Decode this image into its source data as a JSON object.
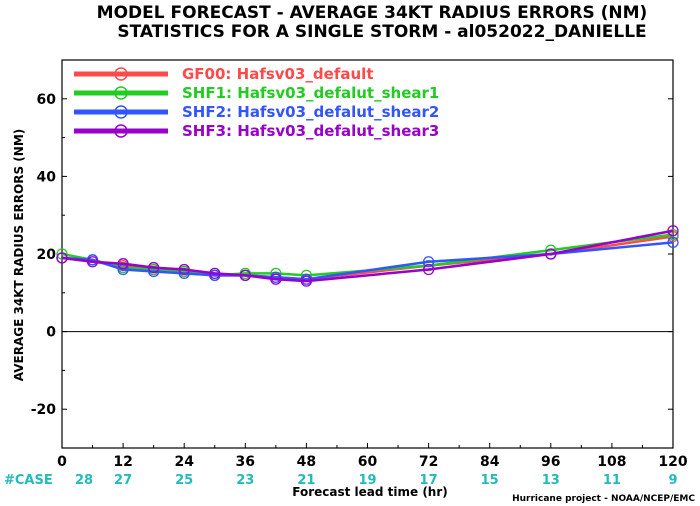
{
  "colors": {
    "GF00": "#ff4a4a",
    "SHF1": "#22cc22",
    "SHF2": "#3355ff",
    "SHF3": "#9900cc",
    "case": "#22bbbb",
    "zero_line": "#000000"
  },
  "chart_data": {
    "type": "line",
    "title": "MODEL FORECAST - AVERAGE 34KT RADIUS ERRORS (NM)",
    "subtitle": "STATISTICS FOR A SINGLE STORM - al052022_DANIELLE",
    "xlabel": "Forecast lead time (hr)",
    "ylabel": "AVERAGE 34KT RADIUS ERRORS (NM)",
    "xlim": [
      0,
      120
    ],
    "ylim": [
      -30,
      70
    ],
    "x_ticks": [
      0,
      12,
      24,
      36,
      48,
      60,
      72,
      84,
      96,
      108,
      120
    ],
    "y_ticks": [
      -20,
      0,
      20,
      40,
      60
    ],
    "grid": false,
    "legend_position": "top-left",
    "case_label": "#CASE",
    "case_counts": [
      28,
      27,
      25,
      23,
      21,
      19,
      17,
      15,
      13,
      11,
      9
    ],
    "credit": "Hurricane project - NOAA/NCEP/EMC",
    "series": [
      {
        "name": "GF00: Hafsv03_default",
        "color_key": "GF00",
        "x": [
          0,
          12,
          18,
          24,
          30,
          36,
          42,
          48,
          72,
          96,
          120
        ],
        "y": [
          19,
          17,
          16,
          15.5,
          14.5,
          14.5,
          14,
          13.5,
          17,
          20,
          24.5
        ]
      },
      {
        "name": "SHF1: Hafsv03_defalut_shear1",
        "color_key": "SHF1",
        "x": [
          0,
          6,
          12,
          18,
          24,
          30,
          36,
          42,
          48,
          72,
          96,
          120
        ],
        "y": [
          20,
          18.5,
          16.5,
          16,
          15.5,
          14.5,
          15,
          15,
          14.5,
          17,
          21,
          25
        ]
      },
      {
        "name": "SHF2: Hafsv03_defalut_shear2",
        "color_key": "SHF2",
        "x": [
          0,
          6,
          12,
          18,
          24,
          30,
          36,
          42,
          48,
          72,
          96,
          120
        ],
        "y": [
          19,
          18.5,
          16,
          15.5,
          15,
          14.5,
          14.5,
          14,
          13.5,
          18,
          20,
          23
        ]
      },
      {
        "name": "SHF3: Hafsv03_defalut_shear3",
        "color_key": "SHF3",
        "x": [
          0,
          6,
          12,
          18,
          24,
          30,
          36,
          42,
          48,
          72,
          96,
          120
        ],
        "y": [
          19,
          18,
          17.5,
          16.5,
          16,
          15,
          14.5,
          13.5,
          13,
          16,
          20,
          26
        ]
      }
    ]
  }
}
